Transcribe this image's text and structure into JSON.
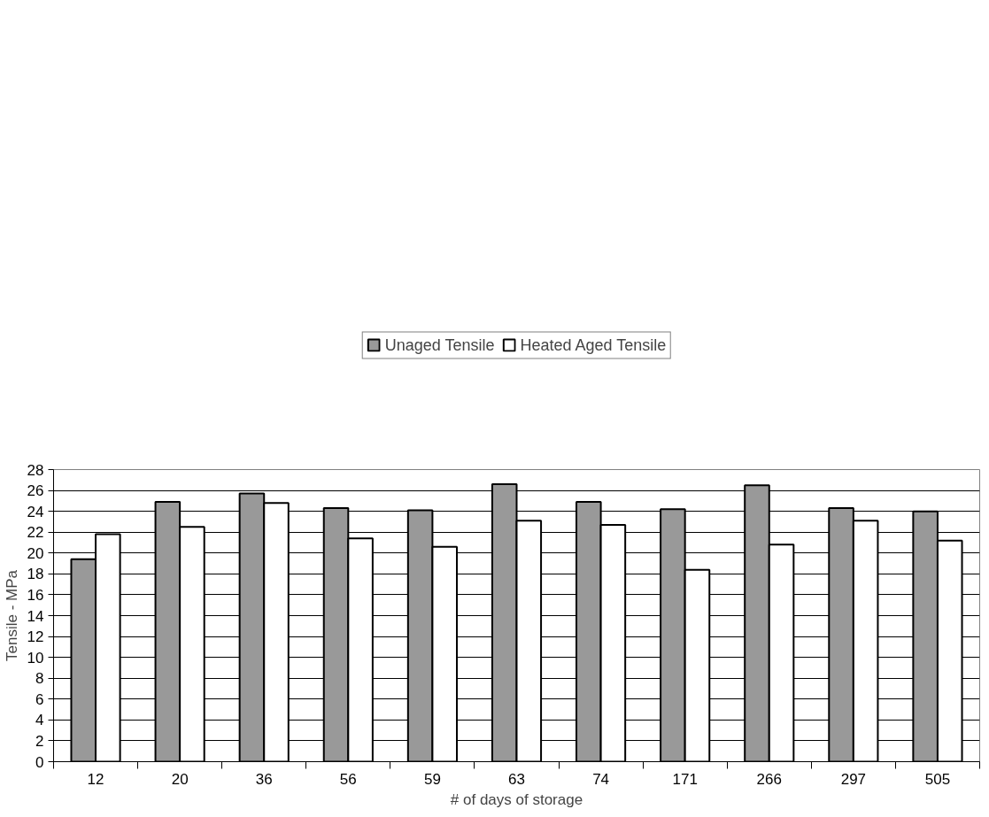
{
  "chart_data": {
    "type": "bar",
    "xlabel": "# of days of storage",
    "ylabel": "Tensile - MPa",
    "categories": [
      "12",
      "20",
      "36",
      "56",
      "59",
      "63",
      "74",
      "171",
      "266",
      "297",
      "505"
    ],
    "series": [
      {
        "name": "Unaged Tensile",
        "color": "#999999",
        "values": [
          19.4,
          24.9,
          25.7,
          24.3,
          24.1,
          26.6,
          24.9,
          24.2,
          26.5,
          24.3,
          24.0
        ]
      },
      {
        "name": "Heated Aged Tensile",
        "color": "#ffffff",
        "values": [
          21.8,
          22.5,
          24.8,
          21.4,
          20.6,
          23.1,
          22.7,
          18.4,
          20.8,
          23.1,
          21.2
        ]
      }
    ],
    "ylim": [
      0,
      28
    ],
    "yticks": [
      0,
      2,
      4,
      6,
      8,
      10,
      12,
      14,
      16,
      18,
      20,
      22,
      24,
      26,
      28
    ],
    "grid": "y",
    "legend": "top"
  }
}
